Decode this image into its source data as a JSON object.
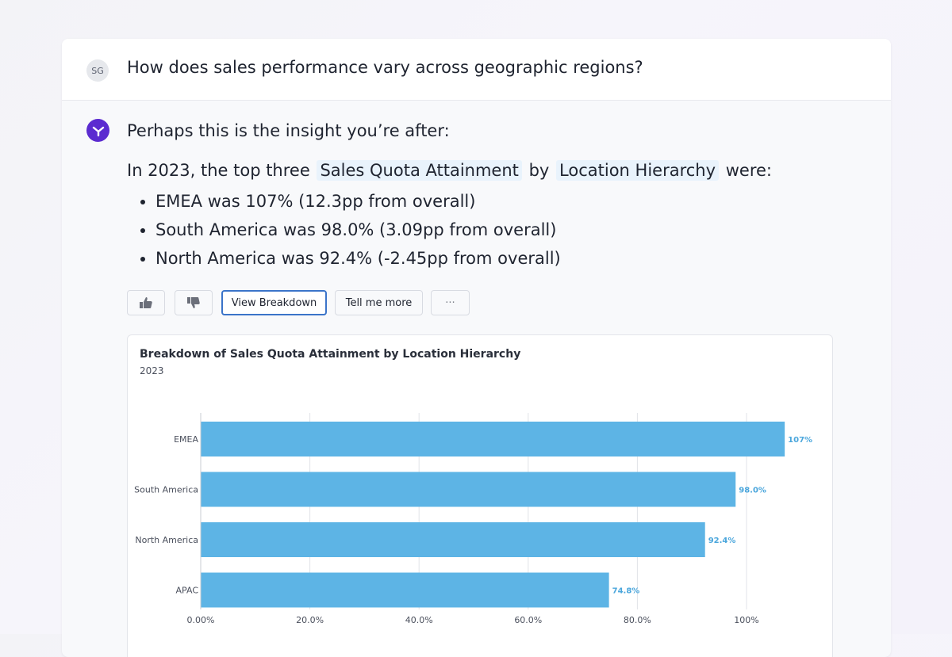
{
  "conversation": {
    "user_initials": "SG",
    "question": "How does sales performance vary across geographic regions?",
    "assistant_intro": "Perhaps this is the insight you’re after:",
    "summary": {
      "prefix": "In 2023, the top three",
      "metric_chip": "Sales Quota Attainment",
      "middle": "by",
      "dimension_chip": "Location Hierarchy",
      "suffix": "were:"
    },
    "bullets": [
      "EMEA was 107% (12.3pp from overall)",
      "South America was 98.0% (3.09pp from overall)",
      "North America was 92.4% (-2.45pp from overall)"
    ]
  },
  "actions": {
    "thumbs_up_icon": "thumbs-up-icon",
    "thumbs_down_icon": "thumbs-down-icon",
    "view_breakdown": "View Breakdown",
    "tell_me_more": "Tell me more",
    "more": "···"
  },
  "colors": {
    "bar": "#5db4e5",
    "data_label": "#4aa6dc",
    "assistant_accent": "#5b2bd0",
    "chip_bg": "#e9f3fc"
  },
  "chart_data": {
    "type": "bar",
    "orientation": "horizontal",
    "title": "Breakdown of Sales Quota Attainment by Location Hierarchy",
    "subtitle": "2023",
    "categories": [
      "EMEA",
      "South America",
      "North America",
      "APAC"
    ],
    "values": [
      107,
      98.0,
      92.4,
      74.8
    ],
    "data_labels": [
      "107%",
      "98.0%",
      "92.4%",
      "74.8%"
    ],
    "xlim": [
      0,
      100
    ],
    "xticks": [
      0,
      20,
      40,
      60,
      80,
      100
    ],
    "xtick_labels": [
      "0.00%",
      "20.0%",
      "40.0%",
      "60.0%",
      "80.0%",
      "100%"
    ],
    "grid": true
  }
}
